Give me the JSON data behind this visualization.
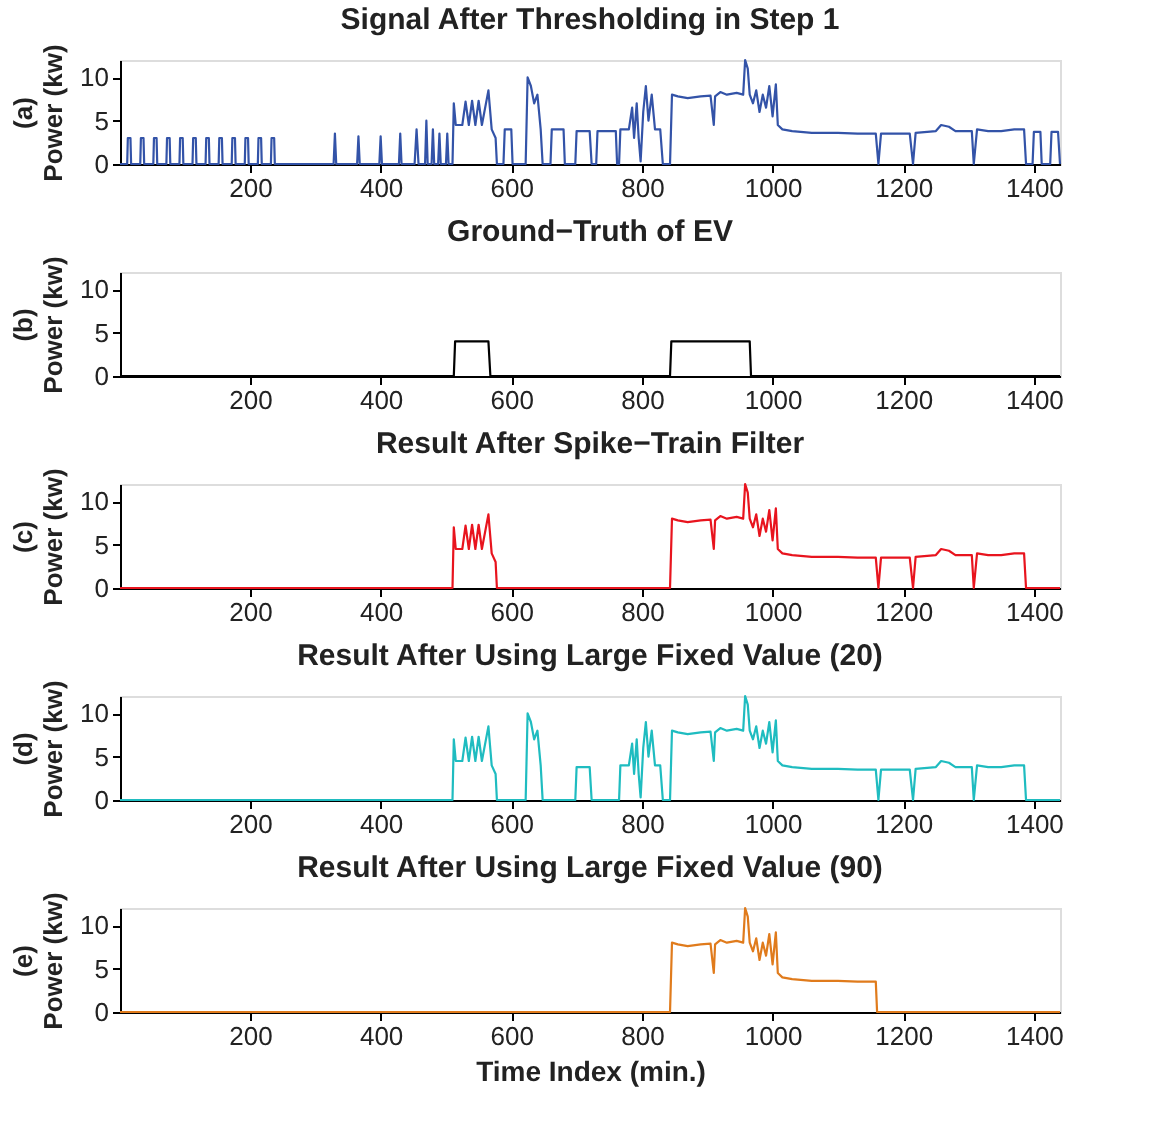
{
  "chart_data": [
    {
      "type": "line",
      "title": "Signal After Thresholding in Step 1",
      "ylabel": "(a)\nPower (kw)",
      "xlim": [
        1,
        1440
      ],
      "ylim": [
        0,
        12
      ],
      "xticks": [
        200,
        400,
        600,
        800,
        1000,
        1200,
        1400
      ],
      "yticks": [
        0,
        5,
        10
      ],
      "grid": false,
      "x": [
        1,
        12,
        13,
        17,
        18,
        32,
        33,
        37,
        38,
        52,
        53,
        57,
        58,
        72,
        73,
        77,
        78,
        92,
        93,
        97,
        98,
        112,
        113,
        117,
        118,
        132,
        133,
        137,
        138,
        152,
        153,
        157,
        158,
        172,
        173,
        177,
        178,
        192,
        193,
        197,
        198,
        212,
        213,
        217,
        218,
        232,
        233,
        237,
        238,
        328,
        330,
        332,
        364,
        366,
        368,
        398,
        400,
        402,
        428,
        430,
        432,
        452,
        455,
        458,
        468,
        470,
        472,
        478,
        480,
        482,
        488,
        490,
        492,
        500,
        502,
        504,
        510,
        512,
        515,
        525,
        530,
        535,
        540,
        545,
        550,
        555,
        565,
        570,
        576,
        578,
        588,
        590,
        600,
        602,
        622,
        625,
        630,
        635,
        640,
        645,
        648,
        660,
        662,
        680,
        682,
        698,
        700,
        720,
        723,
        730,
        732,
        760,
        762,
        765,
        767,
        780,
        785,
        788,
        792,
        795,
        798,
        802,
        806,
        810,
        815,
        820,
        828,
        832,
        843,
        846,
        855,
        870,
        890,
        905,
        910,
        912,
        920,
        930,
        945,
        955,
        958,
        962,
        965,
        970,
        975,
        980,
        985,
        990,
        995,
        1000,
        1005,
        1008,
        1015,
        1030,
        1060,
        1100,
        1130,
        1158,
        1162,
        1166,
        1210,
        1215,
        1219,
        1250,
        1258,
        1270,
        1280,
        1305,
        1308,
        1313,
        1330,
        1350,
        1370,
        1385,
        1388,
        1398,
        1400,
        1410,
        1412,
        1425,
        1427,
        1437,
        1440
      ],
      "series": [
        {
          "color": "#3353a8",
          "values": [
            0,
            0,
            3,
            3,
            0,
            0,
            3,
            3,
            0,
            0,
            3,
            3,
            0,
            0,
            3,
            3,
            0,
            0,
            3,
            3,
            0,
            0,
            3,
            3,
            0,
            0,
            3,
            3,
            0,
            0,
            3,
            3,
            0,
            0,
            3,
            3,
            0,
            0,
            3,
            3,
            0,
            0,
            3,
            3,
            0,
            0,
            3,
            3,
            0,
            0,
            3.5,
            0,
            0,
            3.2,
            0,
            0,
            3.2,
            0,
            0,
            3.5,
            0,
            0,
            4,
            0,
            0,
            5,
            0,
            0,
            4,
            0,
            0,
            3.5,
            0,
            0,
            3.5,
            0,
            0,
            7,
            4.5,
            4.5,
            7.2,
            4.5,
            7.3,
            4.5,
            7.3,
            4.5,
            8.5,
            4,
            3,
            0,
            0,
            4,
            4,
            0,
            0,
            10,
            9,
            7,
            8,
            4,
            0,
            0,
            4,
            4,
            0,
            0,
            3.8,
            3.8,
            0,
            0,
            3.8,
            3.8,
            0,
            0,
            4,
            4,
            6.5,
            3,
            7,
            3,
            0.3,
            6,
            9,
            5,
            8,
            4,
            4,
            0,
            0,
            8,
            7.8,
            7.6,
            7.8,
            7.9,
            4.5,
            7.8,
            8.3,
            8,
            8.2,
            8,
            12,
            11,
            8,
            7,
            8.5,
            6,
            8,
            6.5,
            9,
            5.5,
            9.2,
            4.5,
            4,
            3.8,
            3.6,
            3.6,
            3.5,
            3.5,
            0,
            3.5,
            3.5,
            0,
            3.6,
            3.8,
            4.5,
            4.3,
            3.8,
            3.8,
            0,
            4,
            3.8,
            3.8,
            4,
            4,
            0,
            0,
            3.7,
            3.7,
            0,
            0,
            3.7,
            3.7,
            0
          ]
        }
      ]
    },
    {
      "type": "line",
      "title": "Ground−Truth of EV",
      "ylabel": "(b)\nPower (kw)",
      "xlim": [
        1,
        1440
      ],
      "ylim": [
        0,
        12
      ],
      "xticks": [
        200,
        400,
        600,
        800,
        1000,
        1200,
        1400
      ],
      "yticks": [
        0,
        5,
        10
      ],
      "grid": false,
      "x": [
        1,
        512,
        514,
        565,
        568,
        843,
        845,
        965,
        967,
        1440
      ],
      "series": [
        {
          "color": "#000000",
          "values": [
            0,
            0,
            4,
            4,
            0,
            0,
            4,
            4,
            0,
            0
          ]
        }
      ]
    },
    {
      "type": "line",
      "title": "Result After Spike−Train Filter",
      "ylabel": "(c)\nPower (kw)",
      "xlim": [
        1,
        1440
      ],
      "ylim": [
        0,
        12
      ],
      "xticks": [
        200,
        400,
        600,
        800,
        1000,
        1200,
        1400
      ],
      "yticks": [
        0,
        5,
        10
      ],
      "grid": false,
      "x": [
        1,
        510,
        512,
        515,
        525,
        530,
        535,
        540,
        545,
        550,
        555,
        565,
        570,
        576,
        578,
        843,
        846,
        855,
        870,
        890,
        905,
        910,
        912,
        920,
        930,
        945,
        955,
        958,
        962,
        965,
        970,
        975,
        980,
        985,
        990,
        995,
        1000,
        1005,
        1008,
        1015,
        1030,
        1060,
        1100,
        1130,
        1158,
        1162,
        1166,
        1210,
        1215,
        1219,
        1250,
        1258,
        1270,
        1280,
        1305,
        1308,
        1313,
        1330,
        1350,
        1370,
        1385,
        1388,
        1440
      ],
      "series": [
        {
          "color": "#e8141e",
          "values": [
            0,
            0,
            7,
            4.5,
            4.5,
            7.2,
            4.5,
            7.3,
            4.5,
            7.3,
            4.5,
            8.5,
            4,
            3,
            0,
            0,
            8,
            7.8,
            7.6,
            7.8,
            7.9,
            4.5,
            7.8,
            8.3,
            8,
            8.2,
            8,
            12,
            11,
            8,
            7,
            8.5,
            6,
            8,
            6.5,
            9,
            5.5,
            9.2,
            4.5,
            4,
            3.8,
            3.6,
            3.6,
            3.5,
            3.5,
            0,
            3.5,
            3.5,
            0,
            3.6,
            3.8,
            4.5,
            4.3,
            3.8,
            3.8,
            0,
            4,
            3.8,
            3.8,
            4,
            4,
            0,
            0
          ]
        }
      ]
    },
    {
      "type": "line",
      "title": "Result After Using Large Fixed Value (20)",
      "ylabel": "(d)\nPower (kw)",
      "xlim": [
        1,
        1440
      ],
      "ylim": [
        0,
        12
      ],
      "xticks": [
        200,
        400,
        600,
        800,
        1000,
        1200,
        1400
      ],
      "yticks": [
        0,
        5,
        10
      ],
      "grid": false,
      "x": [
        1,
        510,
        512,
        515,
        525,
        530,
        535,
        540,
        545,
        550,
        555,
        565,
        570,
        576,
        578,
        622,
        625,
        630,
        635,
        640,
        645,
        648,
        698,
        700,
        720,
        723,
        765,
        767,
        780,
        785,
        788,
        792,
        795,
        798,
        802,
        806,
        810,
        815,
        820,
        828,
        832,
        843,
        846,
        855,
        870,
        890,
        905,
        910,
        912,
        920,
        930,
        945,
        955,
        958,
        962,
        965,
        970,
        975,
        980,
        985,
        990,
        995,
        1000,
        1005,
        1008,
        1015,
        1030,
        1060,
        1100,
        1130,
        1158,
        1162,
        1166,
        1210,
        1215,
        1219,
        1250,
        1258,
        1270,
        1280,
        1305,
        1308,
        1313,
        1330,
        1350,
        1370,
        1385,
        1388,
        1440
      ],
      "series": [
        {
          "color": "#1fbcc0",
          "values": [
            0,
            0,
            7,
            4.5,
            4.5,
            7.2,
            4.5,
            7.3,
            4.5,
            7.3,
            4.5,
            8.5,
            4,
            3,
            0,
            0,
            10,
            9,
            7,
            8,
            4,
            0,
            0,
            3.8,
            3.8,
            0,
            0,
            4,
            4,
            6.5,
            3,
            7,
            3,
            0.3,
            6,
            9,
            5,
            8,
            4,
            4,
            0,
            0,
            8,
            7.8,
            7.6,
            7.8,
            7.9,
            4.5,
            7.8,
            8.3,
            8,
            8.2,
            8,
            12,
            11,
            8,
            7,
            8.5,
            6,
            8,
            6.5,
            9,
            5.5,
            9.2,
            4.5,
            4,
            3.8,
            3.6,
            3.6,
            3.5,
            3.5,
            0,
            3.5,
            3.5,
            0,
            3.6,
            3.8,
            4.5,
            4.3,
            3.8,
            3.8,
            0,
            4,
            3.8,
            3.8,
            4,
            4,
            0,
            0
          ]
        }
      ]
    },
    {
      "type": "line",
      "title": "Result After Using Large Fixed Value (90)",
      "ylabel": "(e)\nPower (kw)",
      "xlabel": "Time Index (min.)",
      "xlim": [
        1,
        1440
      ],
      "ylim": [
        0,
        12
      ],
      "xticks": [
        200,
        400,
        600,
        800,
        1000,
        1200,
        1400
      ],
      "yticks": [
        0,
        5,
        10
      ],
      "grid": false,
      "x": [
        1,
        843,
        846,
        855,
        870,
        890,
        905,
        910,
        912,
        920,
        930,
        945,
        955,
        958,
        962,
        965,
        970,
        975,
        980,
        985,
        990,
        995,
        1000,
        1005,
        1008,
        1015,
        1030,
        1060,
        1100,
        1130,
        1158,
        1160,
        1440
      ],
      "series": [
        {
          "color": "#e07b1c",
          "values": [
            0,
            0,
            8,
            7.8,
            7.6,
            7.8,
            7.9,
            4.5,
            7.8,
            8.3,
            8,
            8.2,
            8,
            12,
            11,
            8,
            7,
            8.5,
            6,
            8,
            6.5,
            9,
            5.5,
            9.2,
            4.5,
            4,
            3.8,
            3.6,
            3.6,
            3.5,
            3.5,
            0,
            0
          ]
        }
      ]
    }
  ]
}
